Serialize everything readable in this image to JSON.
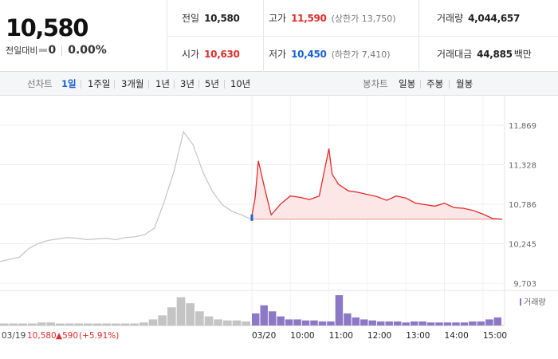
{
  "quote": {
    "price": "10,580",
    "change_label": "전일대비",
    "change": "0",
    "change_pct": "0.00%"
  },
  "summary": {
    "prev_close_label": "전일",
    "prev_close": "10,580",
    "open_label": "시가",
    "open": "10,630",
    "high_label": "고가",
    "high": "11,590",
    "upper_limit": "(상한가 13,750)",
    "low_label": "저가",
    "low": "10,450",
    "lower_limit": "(하한가 7,410)",
    "volume_label": "거래량",
    "volume": "4,044,657",
    "trade_value_label": "거래대금",
    "trade_value": "44,885",
    "trade_value_unit": "백만"
  },
  "tabs": {
    "line_label": "선차트",
    "line": [
      "1일",
      "1주일",
      "3개월",
      "1년",
      "3년",
      "5년",
      "10년"
    ],
    "candle_label": "봉차트",
    "candle": [
      "일봉",
      "주봉",
      "월봉"
    ],
    "active": "1일"
  },
  "colors": {
    "up": "#e02c2c",
    "down": "#1b61d1",
    "prev_line": "#c4c4c4",
    "volume": "#8c78c4"
  },
  "chart_data": {
    "type": "line",
    "y_ticks": [
      "11,869",
      "11,328",
      "10,786",
      "10,245",
      "9,703"
    ],
    "ylim": [
      9703,
      11869
    ],
    "x_ticks": [
      "03/20",
      "10:00",
      "11:00",
      "12:00",
      "13:00",
      "14:00",
      "15:00"
    ],
    "legend": "거래량",
    "baseline": 10580,
    "series": [
      {
        "key": "prev",
        "x": [
          "09:00",
          "09:15",
          "09:30",
          "09:45",
          "10:00",
          "10:15",
          "10:30",
          "10:45",
          "11:00",
          "11:15",
          "11:30",
          "11:45",
          "12:00",
          "12:15",
          "12:30",
          "12:45",
          "13:00",
          "13:15",
          "13:30",
          "13:45",
          "14:00",
          "14:15",
          "14:30",
          "14:45",
          "15:00",
          "15:15",
          "15:30"
        ],
        "values": [
          10000,
          10030,
          10060,
          10180,
          10250,
          10290,
          10310,
          10330,
          10320,
          10300,
          10310,
          10320,
          10300,
          10330,
          10340,
          10370,
          10460,
          10820,
          11230,
          11780,
          11600,
          11230,
          10960,
          10780,
          10690,
          10640,
          10580
        ]
      },
      {
        "key": "today",
        "x": [
          "09:00",
          "09:05",
          "09:10",
          "09:20",
          "09:30",
          "09:45",
          "10:00",
          "10:15",
          "10:30",
          "10:45",
          "11:00",
          "11:05",
          "11:15",
          "11:30",
          "11:45",
          "12:00",
          "12:15",
          "12:30",
          "12:45",
          "13:00",
          "13:15",
          "13:30",
          "13:45",
          "14:00",
          "14:15",
          "14:30",
          "14:45",
          "15:00",
          "15:15",
          "15:30"
        ],
        "values": [
          10630,
          10870,
          11380,
          11000,
          10640,
          10790,
          10900,
          10880,
          10850,
          10900,
          11550,
          11200,
          11060,
          10970,
          10950,
          10920,
          10890,
          10840,
          10900,
          10870,
          10800,
          10780,
          10760,
          10800,
          10740,
          10730,
          10700,
          10650,
          10590,
          10580
        ]
      }
    ],
    "volume": {
      "prev": [
        2,
        2,
        2,
        2,
        3,
        3,
        2,
        2,
        2,
        2,
        2,
        2,
        2,
        2,
        2,
        3,
        6,
        10,
        18,
        28,
        22,
        14,
        9,
        6,
        5,
        5,
        4
      ],
      "today": [
        12,
        20,
        14,
        9,
        6,
        6,
        5,
        5,
        4,
        4,
        30,
        12,
        8,
        6,
        5,
        4,
        4,
        4,
        3,
        4,
        4,
        3,
        3,
        3,
        3,
        3,
        4,
        4,
        6,
        8
      ]
    },
    "footer": {
      "date": "03/19",
      "close": "10,580",
      "change": "▲590",
      "change_pct": "(+5.91%)"
    }
  }
}
